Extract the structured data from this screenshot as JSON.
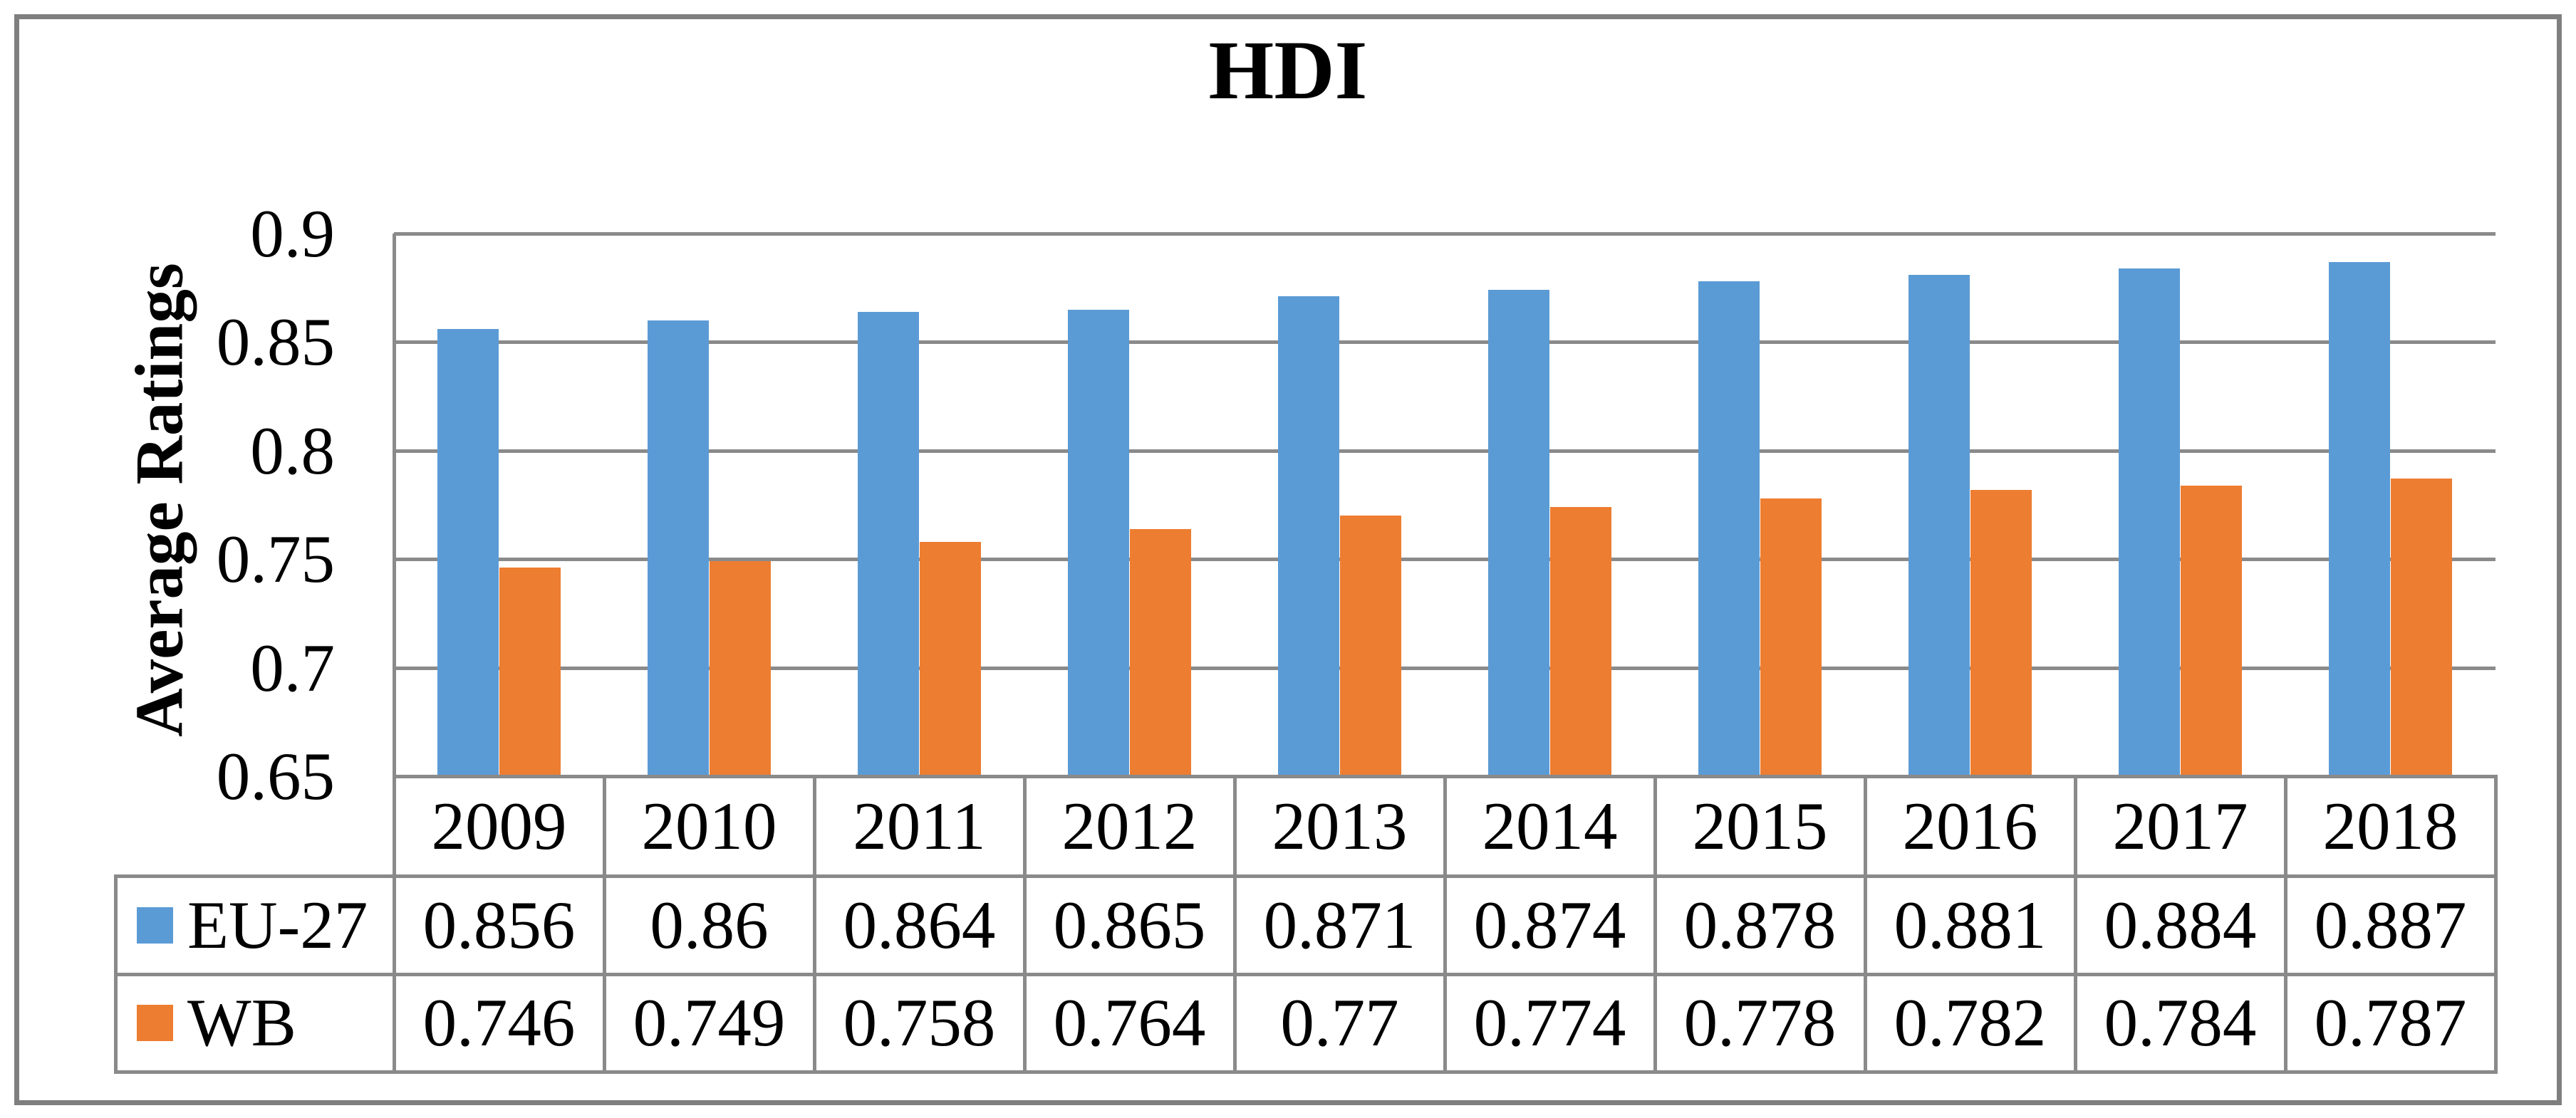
{
  "chart_data": {
    "type": "bar",
    "title": "HDI",
    "ylabel": "Average Ratings",
    "xlabel": "",
    "categories": [
      "2009",
      "2010",
      "2011",
      "2012",
      "2013",
      "2014",
      "2015",
      "2016",
      "2017",
      "2018"
    ],
    "series": [
      {
        "name": "EU-27",
        "color": "#5B9BD5",
        "values": [
          0.856,
          0.86,
          0.864,
          0.865,
          0.871,
          0.874,
          0.878,
          0.881,
          0.884,
          0.887
        ],
        "labels": [
          "0.856",
          "0.86",
          "0.864",
          "0.865",
          "0.871",
          "0.874",
          "0.878",
          "0.881",
          "0.884",
          "0.887"
        ]
      },
      {
        "name": "WB",
        "color": "#ED7D31",
        "values": [
          0.746,
          0.749,
          0.758,
          0.764,
          0.77,
          0.774,
          0.778,
          0.782,
          0.784,
          0.787
        ],
        "labels": [
          "0.746",
          "0.749",
          "0.758",
          "0.764",
          "0.77",
          "0.774",
          "0.778",
          "0.782",
          "0.784",
          "0.787"
        ]
      }
    ],
    "y_axis": {
      "ticks": [
        "0.9",
        "0.85",
        "0.8",
        "0.75",
        "0.7",
        "0.65"
      ],
      "min": 0.65,
      "max": 0.9,
      "step": 0.05
    },
    "grid": true,
    "legend_position": "data-table-left",
    "data_table_shown": true,
    "colors": {
      "gridline": "#8A8A8A",
      "table_border": "#8A8A8A",
      "outer_border": "#7F7F7F",
      "background": "#FFFFFF",
      "text": "#000000"
    }
  }
}
